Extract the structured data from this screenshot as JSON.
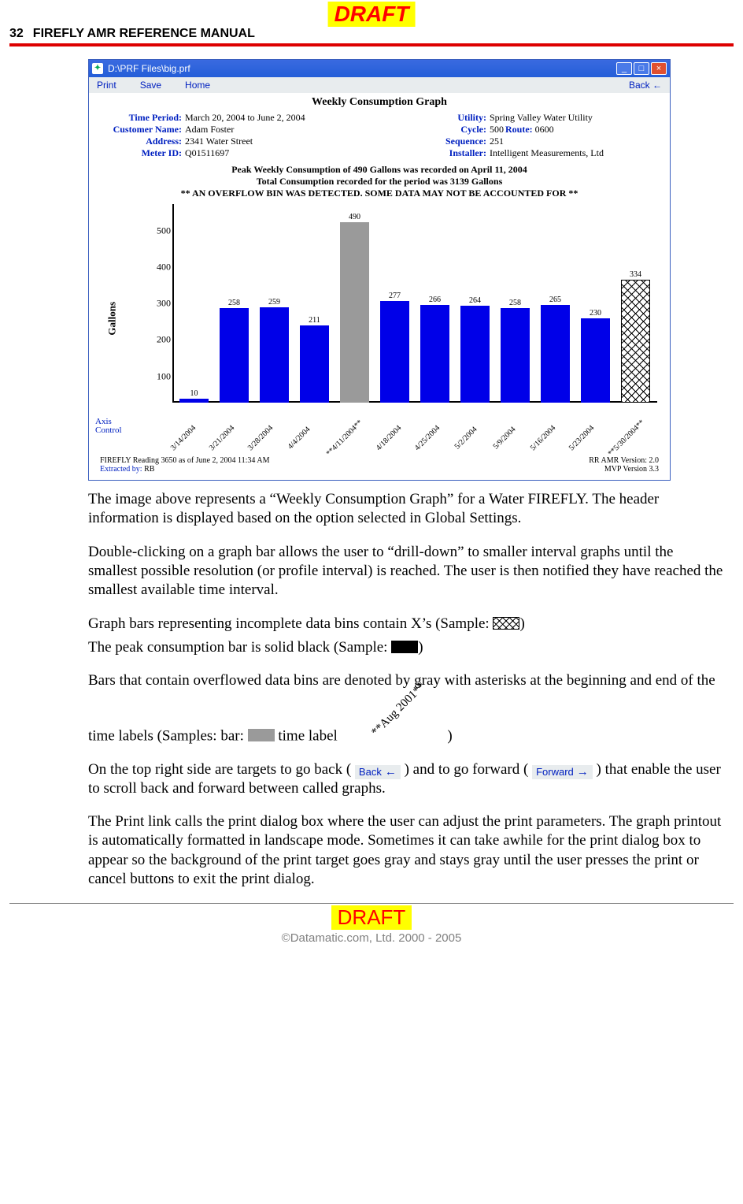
{
  "page": {
    "draft_label": "DRAFT",
    "number": "32",
    "header_title": "FIREFLY AMR REFERENCE MANUAL",
    "copyright": "©Datamatic.com, Ltd. 2000 - 2005"
  },
  "window": {
    "title": "D:\\PRF Files\\big.prf",
    "menu": {
      "print": "Print",
      "save": "Save",
      "home": "Home",
      "back": "Back ←"
    }
  },
  "graph": {
    "title": "Weekly Consumption Graph",
    "info_left": {
      "time_period_label": "Time Period:",
      "time_period": "March 20, 2004 to June 2, 2004",
      "customer_label": "Customer Name:",
      "customer": "Adam Foster",
      "address_label": "Address:",
      "address": "2341 Water Street",
      "meter_label": "Meter ID:",
      "meter": "Q01511697"
    },
    "info_right": {
      "utility_label": "Utility:",
      "utility": "Spring Valley Water Utility",
      "cycle_label": "Cycle:",
      "cycle": "500",
      "route_label": "Route:",
      "route": "0600",
      "sequence_label": "Sequence:",
      "sequence": "251",
      "installer_label": "Installer:",
      "installer": "Intelligent Measurements, Ltd"
    },
    "peak_line_1": "Peak Weekly Consumption of 490 Gallons was recorded on April 11, 2004",
    "peak_line_2": "Total Consumption recorded for the period was 3139 Gallons",
    "overflow_line": "** AN OVERFLOW BIN WAS DETECTED.  SOME DATA MAY NOT BE ACCOUNTED FOR **",
    "y_label": "Gallons",
    "y_ticks": [
      100,
      200,
      300,
      400,
      500
    ],
    "ylim": [
      0,
      540
    ],
    "axis_control": "Axis\nControl",
    "bars": [
      {
        "label": "3/14/2004",
        "value": 10,
        "type": "normal"
      },
      {
        "label": "3/21/2004",
        "value": 258,
        "type": "normal"
      },
      {
        "label": "3/28/2004",
        "value": 259,
        "type": "normal"
      },
      {
        "label": "4/4/2004",
        "value": 211,
        "type": "normal"
      },
      {
        "label": "**4/11/2004**",
        "value": 490,
        "type": "overflow"
      },
      {
        "label": "4/18/2004",
        "value": 277,
        "type": "normal"
      },
      {
        "label": "4/25/2004",
        "value": 266,
        "type": "normal"
      },
      {
        "label": "5/2/2004",
        "value": 264,
        "type": "normal"
      },
      {
        "label": "5/9/2004",
        "value": 258,
        "type": "normal"
      },
      {
        "label": "5/16/2004",
        "value": 265,
        "type": "normal"
      },
      {
        "label": "5/23/2004",
        "value": 230,
        "type": "normal"
      },
      {
        "label": "**5/30/2004**",
        "value": 334,
        "type": "incomplete"
      }
    ],
    "colors": {
      "normal_bar": "#0000e8",
      "overflow_bar": "#9a9a9a",
      "peak_bar": "#000000",
      "link": "#0020c0",
      "titlebar": "#245ed8",
      "axis": "#000000",
      "menubar_bg": "#e8ecee"
    },
    "footer": {
      "reading": "FIREFLY Reading 3650 as of June 2, 2004 11:34 AM",
      "extracted_label": "Extracted by:",
      "extracted": "RB",
      "ver1": "RR AMR Version: 2.0",
      "ver2": "MVP Version 3.3"
    }
  },
  "body": {
    "p1": "The image above represents a “Weekly Consumption Graph” for a Water FIREFLY.  The header information is displayed based on the option selected in Global Settings.",
    "p2": "Double-clicking on a graph bar allows the user to “drill-down” to smaller interval graphs until the smallest possible resolution (or profile interval) is reached.  The user is then notified they have reached the smallest available time interval.",
    "p3a": "Graph bars representing incomplete data bins contain X’s (Sample:",
    "p3b": ")",
    "p4a": "The peak consumption bar is solid black (Sample: ",
    "p4b": ")",
    "p5a": "Bars that contain overflowed data bins are denoted by gray with asterisks at the beginning and end of the time labels (Samples: bar: ",
    "p5b": " time label ",
    "p5c": " )",
    "p5_sample_label": "**Aug 2001**",
    "p6a": "On the top right side are targets to go back  ( ",
    "p6b": " ) and to go forward ( ",
    "p6c": " ) that enable the user to scroll back and forward between called graphs.",
    "nav_back": "Back",
    "nav_forward": "Forward",
    "p7": "The Print link calls the print dialog box where the user can adjust the print parameters.  The graph printout is automatically formatted in landscape mode.  Sometimes it can take awhile for the print dialog box to appear so the background of the print target goes gray and stays gray until the user presses the print or cancel buttons to exit the print dialog."
  }
}
